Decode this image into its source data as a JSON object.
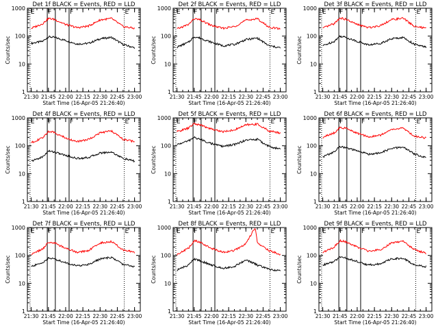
{
  "colors": {
    "events": "#000000",
    "lld": "#ff0000",
    "background": "#ffffff"
  },
  "chart_data": [
    {
      "type": "line",
      "title": "Det 1f BLACK = Events, RED = LLD",
      "xlabel": "Start Time (16-Apr-05 21:26:40)",
      "ylabel": "Counts/sec",
      "x_ticks": [
        "21:30",
        "21:45",
        "22:00",
        "22:15",
        "22:30",
        "22:45",
        "23:00"
      ],
      "y_ticks": [
        "1",
        "10",
        "100",
        "1000"
      ],
      "ylim": [
        1,
        1000
      ],
      "y_scale": "log",
      "xlim": [
        "21:26:40",
        "23:05:00"
      ],
      "markers": [
        {
          "time": "21:29",
          "label": "E",
          "style": "dotted"
        },
        {
          "time": "21:44",
          "label": "F",
          "style": "solid"
        },
        {
          "time": "21:51",
          "label": "",
          "style": "solid"
        },
        {
          "time": "22:03",
          "label": "F",
          "style": "solid"
        },
        {
          "time": "22:51",
          "label": "E",
          "style": "dotted"
        }
      ],
      "series": [
        {
          "name": "BLACK",
          "color": "#000000",
          "x": [
            "21:30",
            "21:40",
            "21:45",
            "21:50",
            "22:00",
            "22:10",
            "22:20",
            "22:30",
            "22:40",
            "22:50",
            "23:00"
          ],
          "values": [
            55,
            65,
            95,
            90,
            70,
            52,
            55,
            80,
            90,
            50,
            38
          ]
        },
        {
          "name": "RED",
          "color": "#ff0000",
          "x": [
            "21:30",
            "21:40",
            "21:45",
            "21:50",
            "22:00",
            "22:10",
            "22:20",
            "22:30",
            "22:40",
            "22:50",
            "23:00"
          ],
          "values": [
            190,
            280,
            430,
            400,
            260,
            200,
            230,
            380,
            430,
            220,
            190
          ]
        }
      ]
    },
    {
      "type": "line",
      "title": "Det 2f BLACK = Events, RED = LLD",
      "xlabel": "Start Time (16-Apr-05 21:26:40)",
      "ylabel": "Counts/sec",
      "x_ticks": [
        "21:30",
        "21:45",
        "22:00",
        "22:15",
        "22:30",
        "22:45",
        "23:00"
      ],
      "y_ticks": [
        "1",
        "10",
        "100",
        "1000"
      ],
      "ylim": [
        1,
        1000
      ],
      "y_scale": "log",
      "xlim": [
        "21:26:40",
        "23:05:00"
      ],
      "markers": [
        {
          "time": "21:29",
          "label": "E",
          "style": "dotted"
        },
        {
          "time": "21:44",
          "label": "F",
          "style": "solid"
        },
        {
          "time": "21:51",
          "label": "",
          "style": "solid"
        },
        {
          "time": "22:03",
          "label": "F",
          "style": "solid"
        },
        {
          "time": "22:51",
          "label": "E",
          "style": "dotted"
        }
      ],
      "series": [
        {
          "name": "BLACK",
          "color": "#000000",
          "x": [
            "21:30",
            "21:40",
            "21:45",
            "21:50",
            "22:00",
            "22:10",
            "22:20",
            "22:30",
            "22:40",
            "22:50",
            "23:00"
          ],
          "values": [
            40,
            60,
            95,
            85,
            60,
            45,
            50,
            75,
            85,
            45,
            38
          ]
        },
        {
          "name": "RED",
          "color": "#ff0000",
          "x": [
            "21:30",
            "21:40",
            "21:45",
            "21:50",
            "22:00",
            "22:10",
            "22:20",
            "22:30",
            "22:40",
            "22:50",
            "23:00"
          ],
          "values": [
            180,
            260,
            420,
            380,
            240,
            190,
            220,
            370,
            420,
            210,
            180
          ]
        }
      ]
    },
    {
      "type": "line",
      "title": "Det 3f BLACK = Events, RED = LLD",
      "xlabel": "Start Time (16-Apr-05 21:26:40)",
      "ylabel": "Counts/sec",
      "x_ticks": [
        "21:30",
        "21:45",
        "22:00",
        "22:15",
        "22:30",
        "22:45",
        "23:00"
      ],
      "y_ticks": [
        "1",
        "10",
        "100",
        "1000"
      ],
      "ylim": [
        1,
        1000
      ],
      "y_scale": "log",
      "xlim": [
        "21:26:40",
        "23:05:00"
      ],
      "markers": [
        {
          "time": "21:29",
          "label": "E",
          "style": "dotted"
        },
        {
          "time": "21:44",
          "label": "F",
          "style": "solid"
        },
        {
          "time": "21:51",
          "label": "",
          "style": "solid"
        },
        {
          "time": "22:03",
          "label": "F",
          "style": "solid"
        },
        {
          "time": "22:51",
          "label": "E",
          "style": "dotted"
        }
      ],
      "series": [
        {
          "name": "BLACK",
          "color": "#000000",
          "x": [
            "21:30",
            "21:40",
            "21:45",
            "21:50",
            "22:00",
            "22:10",
            "22:20",
            "22:30",
            "22:40",
            "22:50",
            "23:00"
          ],
          "values": [
            45,
            65,
            100,
            90,
            65,
            48,
            55,
            80,
            90,
            50,
            40
          ]
        },
        {
          "name": "RED",
          "color": "#ff0000",
          "x": [
            "21:30",
            "21:40",
            "21:45",
            "21:50",
            "22:00",
            "22:10",
            "22:20",
            "22:30",
            "22:40",
            "22:50",
            "23:00"
          ],
          "values": [
            190,
            280,
            450,
            400,
            260,
            200,
            240,
            390,
            440,
            220,
            190
          ]
        }
      ]
    },
    {
      "type": "line",
      "title": "Det 4f BLACK = Events, RED = LLD",
      "xlabel": "Start Time (16-Apr-05 21:26:40)",
      "ylabel": "Counts/sec",
      "x_ticks": [
        "21:30",
        "21:45",
        "22:00",
        "22:15",
        "22:30",
        "22:45",
        "23:00"
      ],
      "y_ticks": [
        "1",
        "10",
        "100",
        "1000"
      ],
      "ylim": [
        1,
        1000
      ],
      "y_scale": "log",
      "xlim": [
        "21:26:40",
        "23:05:00"
      ],
      "markers": [
        {
          "time": "21:29",
          "label": "E",
          "style": "dotted"
        },
        {
          "time": "21:44",
          "label": "F",
          "style": "solid"
        },
        {
          "time": "21:51",
          "label": "",
          "style": "solid"
        },
        {
          "time": "22:03",
          "label": "F",
          "style": "solid"
        },
        {
          "time": "22:51",
          "label": "E",
          "style": "dotted"
        }
      ],
      "series": [
        {
          "name": "BLACK",
          "color": "#000000",
          "x": [
            "21:30",
            "21:40",
            "21:45",
            "21:50",
            "22:00",
            "22:10",
            "22:20",
            "22:30",
            "22:40",
            "22:50",
            "23:00"
          ],
          "values": [
            28,
            40,
            65,
            60,
            45,
            35,
            38,
            55,
            60,
            35,
            28
          ]
        },
        {
          "name": "RED",
          "color": "#ff0000",
          "x": [
            "21:30",
            "21:40",
            "21:45",
            "21:50",
            "22:00",
            "22:10",
            "22:20",
            "22:30",
            "22:40",
            "22:50",
            "23:00"
          ],
          "values": [
            130,
            190,
            330,
            300,
            190,
            140,
            170,
            290,
            340,
            170,
            140
          ]
        }
      ]
    },
    {
      "type": "line",
      "title": "Det 5f BLACK = Events, RED = LLD",
      "xlabel": "Start Time (16-Apr-05 21:26:40)",
      "ylabel": "Counts/sec",
      "x_ticks": [
        "21:30",
        "21:45",
        "22:00",
        "22:15",
        "22:30",
        "22:45",
        "23:00"
      ],
      "y_ticks": [
        "1",
        "10",
        "100",
        "1000"
      ],
      "ylim": [
        1,
        1000
      ],
      "y_scale": "log",
      "xlim": [
        "21:26:40",
        "23:05:00"
      ],
      "markers": [
        {
          "time": "21:29",
          "label": "E",
          "style": "dotted"
        },
        {
          "time": "21:44",
          "label": "F",
          "style": "solid"
        },
        {
          "time": "21:51",
          "label": "",
          "style": "solid"
        },
        {
          "time": "22:03",
          "label": "F",
          "style": "solid"
        },
        {
          "time": "22:51",
          "label": "E",
          "style": "dotted"
        }
      ],
      "series": [
        {
          "name": "BLACK",
          "color": "#000000",
          "x": [
            "21:30",
            "21:40",
            "21:45",
            "21:50",
            "22:00",
            "22:10",
            "22:20",
            "22:30",
            "22:40",
            "22:50",
            "23:00"
          ],
          "values": [
            110,
            150,
            200,
            170,
            120,
            95,
            110,
            160,
            170,
            95,
            75
          ]
        },
        {
          "name": "RED",
          "color": "#ff0000",
          "x": [
            "21:30",
            "21:40",
            "21:45",
            "21:50",
            "22:00",
            "22:10",
            "22:20",
            "22:30",
            "22:40",
            "22:50",
            "23:00"
          ],
          "values": [
            320,
            430,
            620,
            560,
            400,
            320,
            370,
            560,
            600,
            340,
            290
          ]
        }
      ]
    },
    {
      "type": "line",
      "title": "Det 6f BLACK = Events, RED = LLD",
      "xlabel": "Start Time (16-Apr-05 21:26:40)",
      "ylabel": "Counts/sec",
      "x_ticks": [
        "21:30",
        "21:45",
        "22:00",
        "22:15",
        "22:30",
        "22:45",
        "23:00"
      ],
      "y_ticks": [
        "1",
        "10",
        "100",
        "1000"
      ],
      "ylim": [
        1,
        1000
      ],
      "y_scale": "log",
      "xlim": [
        "21:26:40",
        "23:05:00"
      ],
      "markers": [
        {
          "time": "21:29",
          "label": "E",
          "style": "dotted"
        },
        {
          "time": "21:44",
          "label": "F",
          "style": "solid"
        },
        {
          "time": "21:51",
          "label": "",
          "style": "solid"
        },
        {
          "time": "22:03",
          "label": "F",
          "style": "solid"
        },
        {
          "time": "22:51",
          "label": "E",
          "style": "dotted"
        }
      ],
      "series": [
        {
          "name": "BLACK",
          "color": "#000000",
          "x": [
            "21:30",
            "21:40",
            "21:45",
            "21:50",
            "22:00",
            "22:10",
            "22:20",
            "22:30",
            "22:40",
            "22:50",
            "23:00"
          ],
          "values": [
            40,
            60,
            95,
            85,
            65,
            50,
            55,
            80,
            90,
            50,
            38
          ]
        },
        {
          "name": "RED",
          "color": "#ff0000",
          "x": [
            "21:30",
            "21:40",
            "21:45",
            "21:50",
            "22:00",
            "22:10",
            "22:20",
            "22:30",
            "22:40",
            "22:50",
            "23:00"
          ],
          "values": [
            200,
            290,
            450,
            420,
            280,
            210,
            240,
            380,
            430,
            220,
            190
          ]
        }
      ]
    },
    {
      "type": "line",
      "title": "Det 7f BLACK = Events, RED = LLD",
      "xlabel": "Start Time (16-Apr-05 21:26:40)",
      "ylabel": "Counts/sec",
      "x_ticks": [
        "21:30",
        "21:45",
        "22:00",
        "22:15",
        "22:30",
        "22:45",
        "23:00"
      ],
      "y_ticks": [
        "1",
        "10",
        "100",
        "1000"
      ],
      "ylim": [
        1,
        1000
      ],
      "y_scale": "log",
      "xlim": [
        "21:26:40",
        "23:05:00"
      ],
      "markers": [
        {
          "time": "21:29",
          "label": "E",
          "style": "dotted"
        },
        {
          "time": "21:44",
          "label": "F",
          "style": "solid"
        },
        {
          "time": "21:51",
          "label": "",
          "style": "solid"
        },
        {
          "time": "22:03",
          "label": "F",
          "style": "solid"
        },
        {
          "time": "22:51",
          "label": "E",
          "style": "dotted"
        }
      ],
      "series": [
        {
          "name": "BLACK",
          "color": "#000000",
          "x": [
            "21:30",
            "21:40",
            "21:45",
            "21:50",
            "22:00",
            "22:10",
            "22:20",
            "22:30",
            "22:40",
            "22:50",
            "23:00"
          ],
          "values": [
            40,
            55,
            80,
            75,
            55,
            42,
            48,
            75,
            85,
            48,
            40
          ]
        },
        {
          "name": "RED",
          "color": "#ff0000",
          "x": [
            "21:30",
            "21:40",
            "21:45",
            "21:50",
            "22:00",
            "22:10",
            "22:20",
            "22:30",
            "22:40",
            "22:50",
            "23:00"
          ],
          "values": [
            110,
            170,
            300,
            280,
            180,
            130,
            150,
            280,
            320,
            160,
            130
          ]
        }
      ]
    },
    {
      "type": "line",
      "title": "Det 8f BLACK = Events, RED = LLD",
      "xlabel": "Start Time (16-Apr-05 21:26:40)",
      "ylabel": "Counts/sec",
      "x_ticks": [
        "21:30",
        "21:45",
        "22:00",
        "22:15",
        "22:30",
        "22:45",
        "23:00"
      ],
      "y_ticks": [
        "1",
        "10",
        "100",
        "1000"
      ],
      "ylim": [
        1,
        1000
      ],
      "y_scale": "log",
      "xlim": [
        "21:26:40",
        "23:05:00"
      ],
      "markers": [
        {
          "time": "21:29",
          "label": "E",
          "style": "dotted"
        },
        {
          "time": "21:44",
          "label": "F",
          "style": "solid"
        },
        {
          "time": "21:51",
          "label": "",
          "style": "solid"
        },
        {
          "time": "22:03",
          "label": "F",
          "style": "solid"
        },
        {
          "time": "22:51",
          "label": "E",
          "style": "dotted"
        }
      ],
      "series": [
        {
          "name": "BLACK",
          "color": "#000000",
          "x": [
            "21:30",
            "21:40",
            "21:45",
            "21:50",
            "22:00",
            "22:10",
            "22:20",
            "22:30",
            "22:40",
            "22:50",
            "23:00"
          ],
          "values": [
            30,
            45,
            75,
            65,
            45,
            35,
            40,
            70,
            45,
            32,
            28
          ]
        },
        {
          "name": "RED",
          "color": "#ff0000",
          "x": [
            "21:30",
            "21:40",
            "21:45",
            "21:50",
            "22:00",
            "22:10",
            "22:20",
            "22:30",
            "22:38",
            "22:40",
            "22:50",
            "23:00"
          ],
          "values": [
            110,
            180,
            340,
            300,
            180,
            130,
            150,
            260,
            1000,
            280,
            150,
            110
          ]
        }
      ]
    },
    {
      "type": "line",
      "title": "Det 9f BLACK = Events, RED = LLD",
      "xlabel": "Start Time (16-Apr-05 21:26:40)",
      "ylabel": "Counts/sec",
      "x_ticks": [
        "21:30",
        "21:45",
        "22:00",
        "22:15",
        "22:30",
        "22:45",
        "23:00"
      ],
      "y_ticks": [
        "1",
        "10",
        "100",
        "1000"
      ],
      "ylim": [
        1,
        1000
      ],
      "y_scale": "log",
      "xlim": [
        "21:26:40",
        "23:05:00"
      ],
      "markers": [
        {
          "time": "21:29",
          "label": "E",
          "style": "dotted"
        },
        {
          "time": "21:44",
          "label": "F",
          "style": "solid"
        },
        {
          "time": "21:51",
          "label": "",
          "style": "solid"
        },
        {
          "time": "22:03",
          "label": "F",
          "style": "solid"
        },
        {
          "time": "22:51",
          "label": "E",
          "style": "dotted"
        }
      ],
      "series": [
        {
          "name": "BLACK",
          "color": "#000000",
          "x": [
            "21:30",
            "21:40",
            "21:45",
            "21:50",
            "22:00",
            "22:10",
            "22:20",
            "22:30",
            "22:40",
            "22:50",
            "23:00"
          ],
          "values": [
            45,
            60,
            90,
            80,
            60,
            45,
            50,
            75,
            80,
            45,
            40
          ]
        },
        {
          "name": "RED",
          "color": "#ff0000",
          "x": [
            "21:30",
            "21:40",
            "21:45",
            "21:50",
            "22:00",
            "22:10",
            "22:20",
            "22:30",
            "22:40",
            "22:50",
            "23:00"
          ],
          "values": [
            130,
            200,
            340,
            310,
            200,
            140,
            160,
            280,
            320,
            160,
            120
          ]
        }
      ]
    }
  ]
}
